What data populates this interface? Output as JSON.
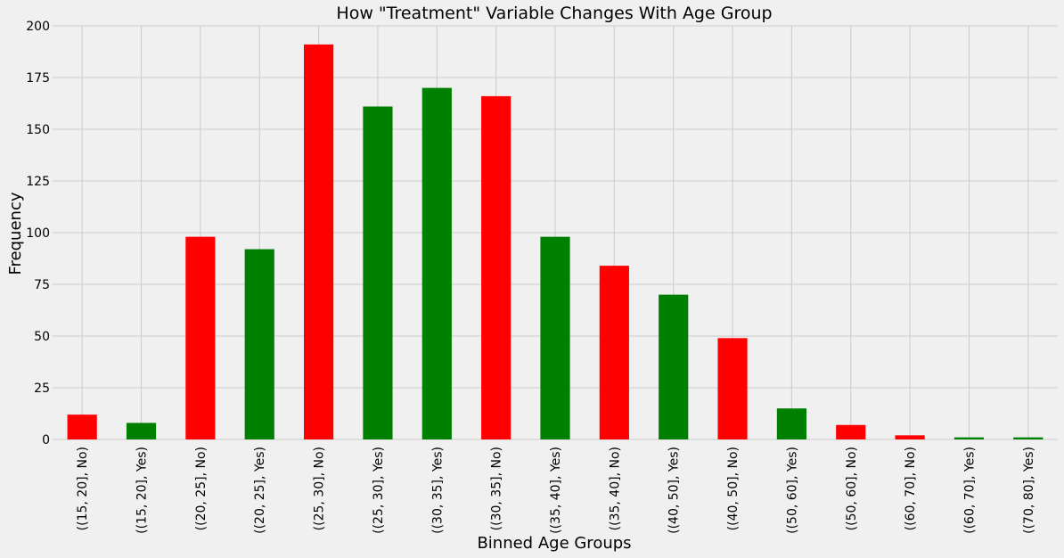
{
  "chart_data": {
    "type": "bar",
    "title": "How \"Treatment\" Variable Changes With Age Group",
    "xlabel": "Binned Age Groups",
    "ylabel": "Frequency",
    "ylim": [
      0,
      200
    ],
    "yticks": [
      "0",
      "25",
      "50",
      "75",
      "100",
      "125",
      "150",
      "175",
      "200"
    ],
    "grid": true,
    "categories": [
      "((15, 20], No)",
      "((15, 20], Yes)",
      "((20, 25], No)",
      "((20, 25], Yes)",
      "((25, 30], No)",
      "((25, 30], Yes)",
      "((30, 35], Yes)",
      "((30, 35], No)",
      "((35, 40], Yes)",
      "((35, 40], No)",
      "((40, 50], Yes)",
      "((40, 50], No)",
      "((50, 60], Yes)",
      "((50, 60], No)",
      "((60, 70], No)",
      "((60, 70], Yes)",
      "((70, 80], Yes)"
    ],
    "values": [
      12,
      8,
      98,
      92,
      191,
      161,
      170,
      166,
      98,
      84,
      70,
      49,
      15,
      7,
      2,
      1,
      1
    ],
    "bar_colors": [
      "#ff0000",
      "#008000",
      "#ff0000",
      "#008000",
      "#ff0000",
      "#008000",
      "#008000",
      "#ff0000",
      "#008000",
      "#ff0000",
      "#008000",
      "#ff0000",
      "#008000",
      "#ff0000",
      "#ff0000",
      "#008000",
      "#008000"
    ]
  }
}
